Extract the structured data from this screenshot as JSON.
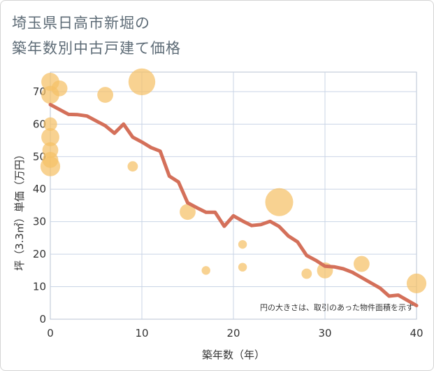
{
  "header": {
    "title_line1": "埼玉県日高市新堀の",
    "title_line2": "築年数別中古戸建て価格"
  },
  "colors": {
    "bubble": "#f5c067",
    "line": "#d4705a",
    "grid": "#c9d4e6",
    "plot_border": "#b8c3d3"
  },
  "chart_data": {
    "type": "scatter",
    "title": "埼玉県日高市新堀の築年数別中古戸建て価格",
    "xlabel": "築年数（年）",
    "ylabel": "坪（3.3㎡）単価（万円）",
    "xlim": [
      0,
      40
    ],
    "ylim": [
      0,
      76
    ],
    "xticks": [
      0,
      10,
      20,
      30,
      40
    ],
    "yticks": [
      0,
      10,
      20,
      30,
      40,
      50,
      60,
      70
    ],
    "grid": true,
    "annotation": "円の大きさは、取引のあった物件面積を示す",
    "scatter": [
      {
        "x": 0,
        "y": 73,
        "size": 4
      },
      {
        "x": 0,
        "y": 69,
        "size": 4
      },
      {
        "x": 1,
        "y": 71,
        "size": 3
      },
      {
        "x": 0,
        "y": 60,
        "size": 2
      },
      {
        "x": 0,
        "y": 56,
        "size": 4
      },
      {
        "x": 0,
        "y": 52,
        "size": 3
      },
      {
        "x": 0,
        "y": 49,
        "size": 3
      },
      {
        "x": 0,
        "y": 47,
        "size": 5
      },
      {
        "x": 6,
        "y": 69,
        "size": 3
      },
      {
        "x": 9,
        "y": 47,
        "size": 1
      },
      {
        "x": 10,
        "y": 73,
        "size": 10
      },
      {
        "x": 15,
        "y": 33,
        "size": 3
      },
      {
        "x": 17,
        "y": 15,
        "size": 0.6
      },
      {
        "x": 21,
        "y": 23,
        "size": 0.6
      },
      {
        "x": 21,
        "y": 16,
        "size": 0.6
      },
      {
        "x": 25,
        "y": 36,
        "size": 11
      },
      {
        "x": 28,
        "y": 14,
        "size": 1
      },
      {
        "x": 30,
        "y": 15,
        "size": 3
      },
      {
        "x": 34,
        "y": 17,
        "size": 3
      },
      {
        "x": 40,
        "y": 11,
        "size": 5
      }
    ],
    "series": [
      {
        "name": "trend",
        "type": "line",
        "x": [
          0,
          1,
          2,
          3,
          4,
          5,
          6,
          7,
          8,
          9,
          10,
          11,
          12,
          13,
          14,
          15,
          16,
          17,
          18,
          19,
          20,
          21,
          22,
          23,
          24,
          25,
          26,
          27,
          28,
          29,
          30,
          31,
          32,
          33,
          34,
          35,
          36,
          37,
          38,
          39,
          40
        ],
        "values": [
          66,
          64.5,
          63,
          62.9,
          62.5,
          61,
          59.5,
          57.2,
          60,
          56,
          54.5,
          52.8,
          51.7,
          44,
          42.2,
          35.8,
          34.3,
          32.9,
          32.9,
          28.6,
          31.8,
          30.2,
          28.8,
          29.1,
          30.1,
          28.5,
          25.6,
          23.8,
          19.6,
          18.1,
          16.3,
          16.1,
          15.5,
          14.4,
          12.8,
          11.2,
          9.6,
          7.1,
          7.4,
          5.8,
          4.2
        ]
      }
    ]
  }
}
